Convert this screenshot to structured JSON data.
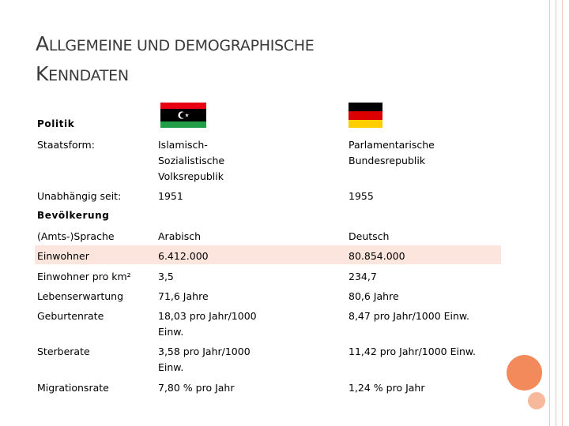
{
  "title": {
    "line1_cap": "A",
    "line1_rest": "LLGEMEINE UND DEMOGRAPHISCHE",
    "line2_cap": "K",
    "line2_rest": "ENNDATEN"
  },
  "sections": {
    "politik": "Politik",
    "bevoelkerung": "Bevölkerung"
  },
  "flags": {
    "libya": {
      "colors": [
        "#e70013",
        "#000000",
        "#239e46"
      ],
      "symbol": "☪"
    },
    "germany": {
      "colors": [
        "#000000",
        "#dd0000",
        "#ffce00"
      ]
    }
  },
  "rows": {
    "staatsform": {
      "label": "Staatsform:",
      "libya": [
        "Islamisch-",
        "Sozialistische",
        "Volksrepublik"
      ],
      "germany": [
        "Parlamentarische",
        "Bundesrepublik"
      ]
    },
    "unabhaengig": {
      "label": "Unabhängig seit:",
      "libya": "1951",
      "germany": "1955"
    },
    "sprache": {
      "label": "(Amts-)Sprache",
      "libya": "Arabisch",
      "germany": "Deutsch"
    },
    "einwohner": {
      "label": "Einwohner",
      "libya": "6.412.000",
      "germany": "80.854.000"
    },
    "einwohner_km": {
      "label": "Einwohner pro km²",
      "libya": "3,5",
      "germany": "234,7"
    },
    "lebenserwartung": {
      "label": "Lebenserwartung",
      "libya": "71,6 Jahre",
      "germany": "80,6 Jahre"
    },
    "geburtenrate": {
      "label": "Geburtenrate",
      "libya": [
        "18,03 pro Jahr/1000",
        "Einw."
      ],
      "germany": "8,47 pro Jahr/1000 Einw."
    },
    "sterberate": {
      "label": "Sterberate",
      "libya": [
        "3,58 pro Jahr/1000",
        "Einw."
      ],
      "germany": "11,42 pro Jahr/1000 Einw."
    },
    "migrationsrate": {
      "label": "Migrationsrate",
      "libya": "7,80 % pro Jahr",
      "germany": "1,24 % pro Jahr"
    }
  }
}
